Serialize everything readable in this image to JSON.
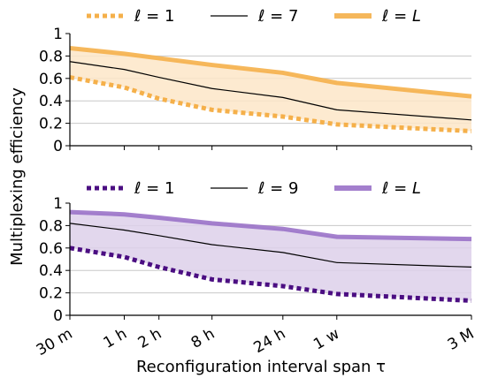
{
  "figure": {
    "ylabel": "Multiplexing efficiency",
    "xlabel": "Reconfiguration interval span τ"
  },
  "chart_data": [
    {
      "type": "line",
      "x_categories": [
        "30 m",
        "1 h",
        "2 h",
        "8 h",
        "24 h",
        "1 w",
        "3 M"
      ],
      "ylim": [
        0,
        1
      ],
      "yticks": [
        "0",
        "0.2",
        "0.4",
        "0.6",
        "0.8",
        "1"
      ],
      "grid": "horizontal",
      "legend_placement": "top, above plot",
      "fill_between": [
        "ℓ = 1",
        "ℓ = L"
      ],
      "colors": {
        "accent": "#f5b04a",
        "fill": "#fde6c8",
        "thin": "#000000"
      },
      "series": [
        {
          "name": "ℓ = 1",
          "style": "dotted",
          "values": [
            0.61,
            0.52,
            0.42,
            0.32,
            0.26,
            0.19,
            0.13
          ]
        },
        {
          "name": "ℓ = 7",
          "style": "thin",
          "values": [
            0.75,
            0.68,
            0.61,
            0.51,
            0.43,
            0.32,
            0.23
          ]
        },
        {
          "name": "ℓ = L",
          "style": "thick",
          "values": [
            0.87,
            0.82,
            0.78,
            0.72,
            0.65,
            0.56,
            0.44
          ]
        }
      ]
    },
    {
      "type": "line",
      "x_categories": [
        "30 m",
        "1 h",
        "2 h",
        "8 h",
        "24 h",
        "1 w",
        "3 M"
      ],
      "ylim": [
        0,
        1
      ],
      "yticks": [
        "0",
        "0.2",
        "0.4",
        "0.6",
        "0.8",
        "1"
      ],
      "grid": "horizontal",
      "legend_placement": "top, above plot",
      "fill_between": [
        "ℓ = 1",
        "ℓ = L"
      ],
      "colors": {
        "accent": "#4b0e82",
        "thick": "#9a72c8",
        "fill": "#ddd0ea",
        "thin": "#000000"
      },
      "series": [
        {
          "name": "ℓ = 1",
          "style": "dotted",
          "values": [
            0.6,
            0.52,
            0.43,
            0.32,
            0.26,
            0.19,
            0.13
          ]
        },
        {
          "name": "ℓ = 9",
          "style": "thin",
          "values": [
            0.82,
            0.76,
            0.71,
            0.63,
            0.56,
            0.47,
            0.43
          ]
        },
        {
          "name": "ℓ = L",
          "style": "thick",
          "values": [
            0.92,
            0.9,
            0.87,
            0.82,
            0.77,
            0.7,
            0.68
          ]
        }
      ]
    }
  ]
}
